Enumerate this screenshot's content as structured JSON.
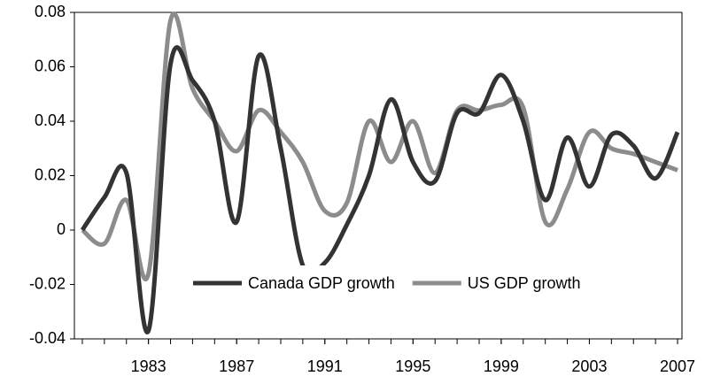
{
  "chart_data": {
    "type": "line",
    "x": [
      1980,
      1981,
      1982,
      1983,
      1984,
      1985,
      1986,
      1987,
      1988,
      1989,
      1990,
      1991,
      1992,
      1993,
      1994,
      1995,
      1996,
      1997,
      1998,
      1999,
      2000,
      2001,
      2002,
      2003,
      2004,
      2005,
      2006,
      2007
    ],
    "series": [
      {
        "name": "Canada GDP growth",
        "color": "#333333",
        "values": [
          0,
          0.012,
          0.021,
          -0.037,
          0.061,
          0.055,
          0.04,
          0.003,
          0.064,
          0.03,
          -0.013,
          -0.012,
          0.002,
          0.02,
          0.048,
          0.025,
          0.018,
          0.043,
          0.043,
          0.057,
          0.04,
          0.011,
          0.034,
          0.016,
          0.035,
          0.031,
          0.019,
          0.036
        ]
      },
      {
        "name": "US GDP growth",
        "color": "#8c8c8c",
        "values": [
          0,
          -0.005,
          0.011,
          -0.016,
          0.077,
          0.052,
          0.04,
          0.029,
          0.044,
          0.036,
          0.025,
          0.007,
          0.01,
          0.04,
          0.025,
          0.04,
          0.021,
          0.044,
          0.044,
          0.046,
          0.045,
          0.003,
          0.015,
          0.036,
          0.03,
          0.028,
          0.025,
          0.022
        ]
      }
    ],
    "xlim": [
      1979.64,
      2007.2
    ],
    "xticks": [
      1983,
      1987,
      1991,
      1995,
      1999,
      2003,
      2007
    ],
    "ylim": [
      -0.04,
      0.08
    ],
    "yticks": [
      -0.04,
      -0.02,
      0,
      0.02,
      0.04,
      0.06,
      0.08
    ],
    "legend": "bottom-right"
  }
}
